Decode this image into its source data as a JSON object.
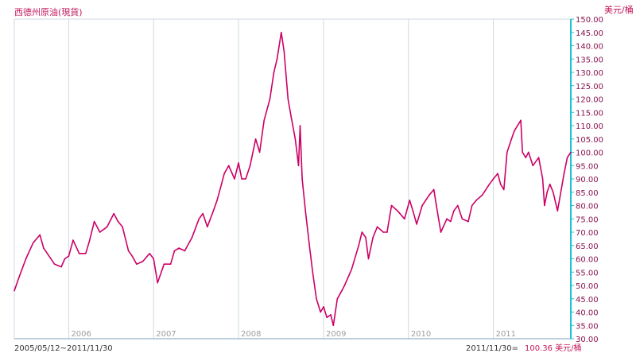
{
  "chart_data": {
    "type": "line",
    "title": "西德州原油(現貨)",
    "unit_label": "美元/桶",
    "period_label": "2005/05/12~2011/11/30",
    "latest": {
      "label": "2011/11/30=",
      "value_text": "100.36 美元/桶"
    },
    "ylim": [
      30,
      150
    ],
    "y_ticks": [
      "30.00",
      "35.00",
      "40.00",
      "45.00",
      "50.00",
      "55.00",
      "60.00",
      "65.00",
      "70.00",
      "75.00",
      "80.00",
      "85.00",
      "90.00",
      "95.00",
      "100.00",
      "105.00",
      "110.00",
      "115.00",
      "120.00",
      "125.00",
      "130.00",
      "135.00",
      "140.00",
      "145.00",
      "150.00"
    ],
    "x_ticks": [
      {
        "label": "2006",
        "x": "2006-01-01"
      },
      {
        "label": "2007",
        "x": "2007-01-01"
      },
      {
        "label": "2008",
        "x": "2008-01-01"
      },
      {
        "label": "2009",
        "x": "2009-01-01"
      },
      {
        "label": "2010",
        "x": "2010-01-01"
      },
      {
        "label": "2011",
        "x": "2011-01-01"
      }
    ],
    "xlim": [
      "2005-05-12",
      "2011-11-30"
    ],
    "colors": {
      "line": "#cc0066",
      "grid": "#cfd8e3",
      "right_axis": "#20c0d0"
    },
    "grid": true,
    "series": [
      {
        "x": [
          "2005-05-12",
          "2005-06-01",
          "2005-07-01",
          "2005-08-01",
          "2005-08-30",
          "2005-09-15",
          "2005-10-01",
          "2005-11-01",
          "2005-11-30",
          "2005-12-15",
          "2006-01-01",
          "2006-01-20",
          "2006-02-15",
          "2006-03-15",
          "2006-04-01",
          "2006-04-21",
          "2006-05-15",
          "2006-06-15",
          "2006-07-14",
          "2006-08-01",
          "2006-08-20",
          "2006-09-15",
          "2006-10-01",
          "2006-10-20",
          "2006-11-15",
          "2006-12-15",
          "2007-01-01",
          "2007-01-18",
          "2007-02-15",
          "2007-03-15",
          "2007-04-01",
          "2007-04-20",
          "2007-05-15",
          "2007-06-15",
          "2007-07-15",
          "2007-08-01",
          "2007-08-20",
          "2007-09-15",
          "2007-10-01",
          "2007-10-20",
          "2007-11-01",
          "2007-11-20",
          "2007-12-15",
          "2008-01-01",
          "2008-01-15",
          "2008-02-01",
          "2008-02-20",
          "2008-03-15",
          "2008-04-01",
          "2008-04-20",
          "2008-05-15",
          "2008-06-01",
          "2008-06-15",
          "2008-07-03",
          "2008-07-15",
          "2008-08-01",
          "2008-08-15",
          "2008-09-01",
          "2008-09-15",
          "2008-09-22",
          "2008-10-01",
          "2008-10-15",
          "2008-11-01",
          "2008-11-15",
          "2008-12-01",
          "2008-12-19",
          "2009-01-01",
          "2009-01-15",
          "2009-02-01",
          "2009-02-12",
          "2009-03-01",
          "2009-03-20",
          "2009-04-01",
          "2009-05-01",
          "2009-06-01",
          "2009-06-15",
          "2009-07-01",
          "2009-07-13",
          "2009-08-01",
          "2009-08-20",
          "2009-09-15",
          "2009-10-01",
          "2009-10-20",
          "2009-11-15",
          "2009-12-15",
          "2010-01-06",
          "2010-01-20",
          "2010-02-05",
          "2010-03-01",
          "2010-04-01",
          "2010-04-20",
          "2010-05-01",
          "2010-05-20",
          "2010-06-15",
          "2010-07-01",
          "2010-07-15",
          "2010-08-01",
          "2010-08-20",
          "2010-09-15",
          "2010-10-01",
          "2010-10-20",
          "2010-11-15",
          "2010-12-15",
          "2011-01-01",
          "2011-01-20",
          "2011-02-01",
          "2011-02-15",
          "2011-03-01",
          "2011-03-20",
          "2011-04-01",
          "2011-04-29",
          "2011-05-06",
          "2011-05-20",
          "2011-06-01",
          "2011-06-20",
          "2011-07-15",
          "2011-08-01",
          "2011-08-09",
          "2011-08-20",
          "2011-09-01",
          "2011-09-15",
          "2011-10-04",
          "2011-10-20",
          "2011-11-01",
          "2011-11-15",
          "2011-11-30"
        ],
        "values": [
          48,
          53,
          60,
          66,
          69,
          64,
          62,
          58,
          57,
          60,
          61,
          67,
          62,
          62,
          67,
          74,
          70,
          72,
          77,
          74,
          72,
          63,
          61,
          58,
          59,
          62,
          60,
          51,
          58,
          58,
          63,
          64,
          63,
          68,
          75,
          77,
          72,
          78,
          82,
          88,
          92,
          95,
          90,
          96,
          90,
          90,
          95,
          105,
          100,
          112,
          120,
          130,
          135,
          145,
          138,
          120,
          113,
          105,
          95,
          110,
          90,
          78,
          65,
          55,
          45,
          40,
          42,
          38,
          39,
          35,
          45,
          48,
          50,
          56,
          65,
          70,
          68,
          60,
          68,
          72,
          70,
          70,
          80,
          78,
          75,
          82,
          78,
          73,
          80,
          84,
          86,
          80,
          70,
          75,
          74,
          78,
          80,
          75,
          74,
          80,
          82,
          84,
          88,
          90,
          92,
          88,
          86,
          100,
          105,
          108,
          112,
          100,
          98,
          100,
          95,
          98,
          90,
          80,
          85,
          88,
          85,
          78,
          86,
          92,
          98,
          100
        ]
      }
    ]
  }
}
